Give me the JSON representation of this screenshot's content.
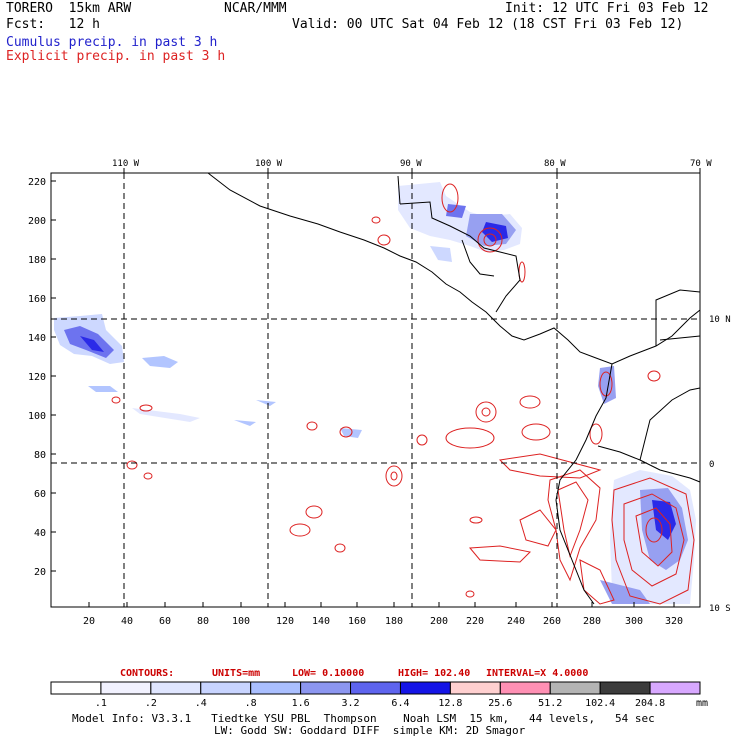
{
  "header": {
    "model": "TORERO  15km ARW",
    "center": "NCAR/MMM",
    "fcst_label": "Fcst:   12 h",
    "init": "Init: 12 UTC Fri 03 Feb 12",
    "valid": "Valid: 00 UTC Sat 04 Feb 12 (18 CST Fri 03 Feb 12)",
    "field1": "Cumulus precip. in past 3 h",
    "field2": "Explicit precip. in past 3 h",
    "field1_color": "#2222cc",
    "field2_color": "#dd2222"
  },
  "map": {
    "lon_labels": [
      "110 W",
      "100 W",
      "90 W",
      "80 W",
      "70 W"
    ],
    "lat_labels": [
      "10 N",
      "0",
      "10 S"
    ],
    "y_ticks": [
      "220",
      "200",
      "180",
      "160",
      "140",
      "120",
      "100",
      "80",
      "60",
      "40",
      "20"
    ],
    "x_ticks": [
      "20",
      "40",
      "60",
      "80",
      "100",
      "120",
      "140",
      "160",
      "180",
      "200",
      "220",
      "240",
      "260",
      "280",
      "300",
      "320"
    ]
  },
  "contour_info": {
    "label": "CONTOURS:",
    "units": "UNITS=mm",
    "low": "LOW= 0.10000",
    "high": "HIGH=  102.40",
    "interval": "INTERVAL=X  4.0000",
    "color": "#cc0000"
  },
  "colorbar": {
    "labels": [
      ".1",
      ".2",
      ".4",
      ".8",
      "1.6",
      "3.2",
      "6.4",
      "12.8",
      "25.6",
      "51.2",
      "102.4",
      "204.8"
    ],
    "unit": "mm",
    "colors": [
      "#ffffff",
      "#f2f2ff",
      "#e0e6ff",
      "#c8d4ff",
      "#aabfff",
      "#8c96f0",
      "#5e64ee",
      "#1414e6",
      "#ffd0d0",
      "#ff90b4",
      "#b4b4b4",
      "#3c3c3c",
      "#d8a8ff"
    ]
  },
  "footer": {
    "line1": "Model Info: V3.3.1   Tiedtke YSU PBL  Thompson    Noah LSM  15 km,   44 levels,   54 sec",
    "line2": "LW: Godd SW: Goddard DIFF  simple KM: 2D Smagor"
  }
}
